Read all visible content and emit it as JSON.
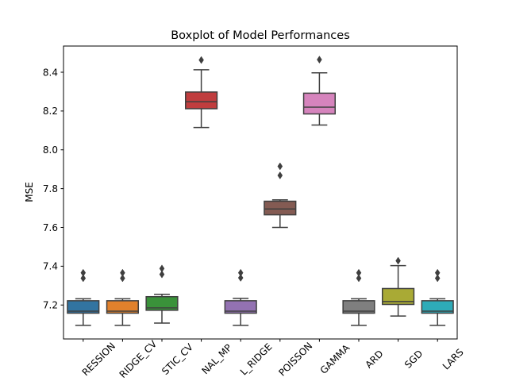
{
  "chart_data": {
    "type": "box",
    "title": "Boxplot of Model Performances",
    "xlabel": "",
    "ylabel": "MSE",
    "ylim": [
      7.025,
      8.535
    ],
    "yticks": [
      7.2,
      7.4,
      7.6,
      7.8,
      8.0,
      8.2,
      8.4
    ],
    "ytick_labels": [
      "7.2",
      "7.4",
      "7.6",
      "7.8",
      "8.0",
      "8.2",
      "8.4"
    ],
    "grid": false,
    "legend": "none",
    "categories": [
      "REGRESSION",
      "RIDGE_CV",
      "LOGISTIC_CV",
      "ORTHOGONAL_MP",
      "KERNEL_RIDGE",
      "POISSON",
      "GAMMA",
      "ARD",
      "SGD",
      "LARS"
    ],
    "tick_labels_visible": [
      "RESSION",
      "RIDGE_CV",
      "STIC_CV",
      "NAL_MP",
      "L_RIDGE",
      "POISSON",
      "GAMMA",
      "ARD",
      "SGD",
      "LARS"
    ],
    "boxes": [
      {
        "whisker_low": 7.095,
        "q1": 7.158,
        "median": 7.168,
        "q3": 7.222,
        "whisker_high": 7.232,
        "outliers": [
          7.338,
          7.366
        ],
        "color": "#3274a1"
      },
      {
        "whisker_low": 7.095,
        "q1": 7.158,
        "median": 7.168,
        "q3": 7.222,
        "whisker_high": 7.232,
        "outliers": [
          7.338,
          7.366
        ],
        "color": "#e1812c"
      },
      {
        "whisker_low": 7.107,
        "q1": 7.173,
        "median": 7.185,
        "q3": 7.243,
        "whisker_high": 7.255,
        "outliers": [
          7.358,
          7.388
        ],
        "color": "#3a923a"
      },
      {
        "whisker_low": 8.115,
        "q1": 8.212,
        "median": 8.248,
        "q3": 8.298,
        "whisker_high": 8.413,
        "outliers": [
          8.463
        ],
        "color": "#c03d3e"
      },
      {
        "whisker_low": 7.095,
        "q1": 7.158,
        "median": 7.168,
        "q3": 7.222,
        "whisker_high": 7.234,
        "outliers": [
          7.34,
          7.366
        ],
        "color": "#9372b2"
      },
      {
        "whisker_low": 7.6,
        "q1": 7.665,
        "median": 7.695,
        "q3": 7.735,
        "whisker_high": 7.742,
        "outliers": [
          7.868,
          7.915
        ],
        "color": "#845b53"
      },
      {
        "whisker_low": 8.128,
        "q1": 8.185,
        "median": 8.22,
        "q3": 8.292,
        "whisker_high": 8.397,
        "outliers": [
          8.465
        ],
        "color": "#d684bd"
      },
      {
        "whisker_low": 7.095,
        "q1": 7.158,
        "median": 7.168,
        "q3": 7.222,
        "whisker_high": 7.232,
        "outliers": [
          7.338,
          7.366
        ],
        "color": "#7f7f7f"
      },
      {
        "whisker_low": 7.143,
        "q1": 7.203,
        "median": 7.218,
        "q3": 7.285,
        "whisker_high": 7.403,
        "outliers": [
          7.428
        ],
        "color": "#a9aa35"
      },
      {
        "whisker_low": 7.095,
        "q1": 7.158,
        "median": 7.168,
        "q3": 7.222,
        "whisker_high": 7.232,
        "outliers": [
          7.338,
          7.366
        ],
        "color": "#2eabb8"
      }
    ]
  }
}
